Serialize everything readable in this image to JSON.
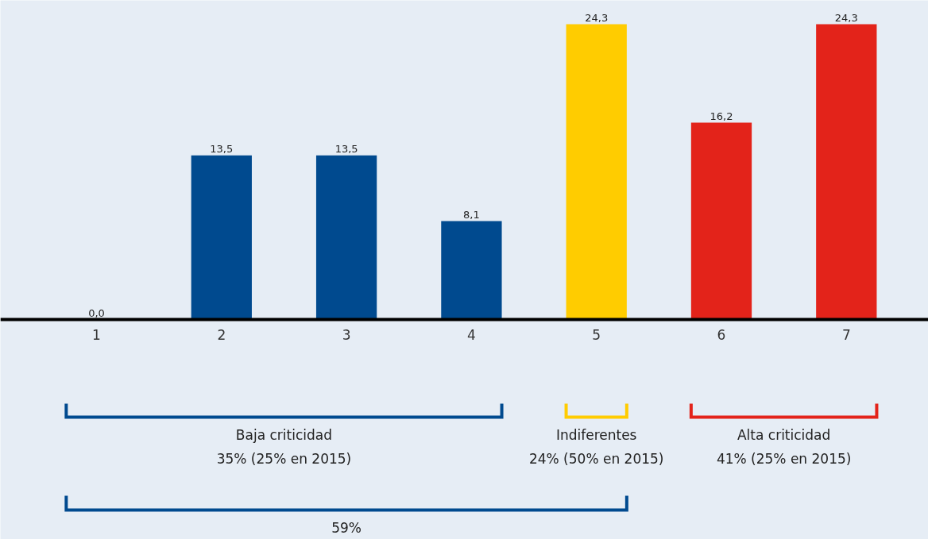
{
  "chart_data": {
    "type": "bar",
    "categories": [
      "1",
      "2",
      "3",
      "4",
      "5",
      "6",
      "7"
    ],
    "values": [
      0.0,
      13.5,
      13.5,
      8.1,
      24.3,
      16.2,
      24.3
    ],
    "colors": [
      "#004a8f",
      "#004a8f",
      "#004a8f",
      "#004a8f",
      "#ffcc00",
      "#e3231a",
      "#e3231a"
    ],
    "value_labels": [
      "0,0",
      "13,5",
      "13,5",
      "8,1",
      "24,3",
      "16,2",
      "24,3"
    ],
    "annotations": [
      "Baja criticidad\n35% (25% en 2015)",
      "Indiferentes\n24% (50% en 2015)",
      "Alta criticidad\n41% (25% en 2015)",
      "59%"
    ],
    "grid": false
  }
}
